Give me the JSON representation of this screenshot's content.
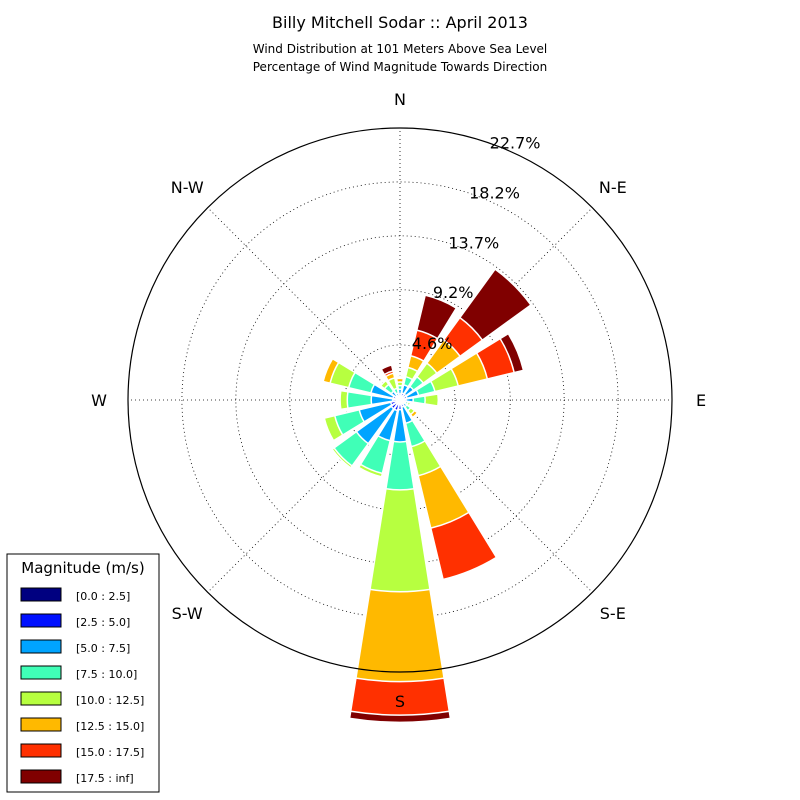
{
  "chart_data": {
    "type": "windrose",
    "title": "Billy Mitchell Sodar :: April 2013",
    "subtitle_lines": [
      "Wind Distribution at 101 Meters Above Sea Level",
      "Percentage of Wind Magnitude Towards Direction"
    ],
    "directions": [
      "N",
      "N-E",
      "E",
      "S-E",
      "S",
      "S-W",
      "W",
      "N-W"
    ],
    "radial_ticks": [
      {
        "value": 4.6,
        "label": "4.6%"
      },
      {
        "value": 9.2,
        "label": "9.2%"
      },
      {
        "value": 13.7,
        "label": "13.7%"
      },
      {
        "value": 18.2,
        "label": "18.2%"
      },
      {
        "value": 22.7,
        "label": "22.7%"
      }
    ],
    "r_max": 22.7,
    "grid": true,
    "legend": {
      "title": "Magnitude (m/s)",
      "placement": "bottom-left",
      "entries": [
        {
          "label": "[0.0 : 2.5]",
          "color": "#000080"
        },
        {
          "label": "[2.5 : 5.0]",
          "color": "#0010ff"
        },
        {
          "label": "[5.0 : 7.5]",
          "color": "#00a4ff"
        },
        {
          "label": "[7.5 : 10.0]",
          "color": "#40ffb7"
        },
        {
          "label": "[10.0 : 12.5]",
          "color": "#b7ff40"
        },
        {
          "label": "[12.5 : 15.0]",
          "color": "#ffb900"
        },
        {
          "label": "[15.0 : 17.5]",
          "color": "#ff3000"
        },
        {
          "label": "[17.5 : inf]",
          "color": "#800000"
        }
      ]
    },
    "sector_direction_degrees": [
      0,
      22.5,
      45,
      67.5,
      90,
      112.5,
      135,
      157.5,
      180,
      202.5,
      225,
      247.5,
      270,
      292.5,
      315,
      337.5
    ],
    "cumulative_percent_by_sector": [
      [
        0.2,
        0.5,
        0.9,
        1.2,
        1.5,
        1.8,
        1.9,
        2.0
      ],
      [
        0.2,
        0.6,
        1.3,
        2.0,
        2.8,
        3.8,
        6.0,
        9.0
      ],
      [
        0.2,
        0.6,
        1.4,
        2.4,
        3.8,
        6.2,
        8.5,
        13.5
      ],
      [
        0.2,
        0.6,
        1.6,
        3.0,
        5.0,
        7.5,
        9.8,
        10.6
      ],
      [
        0.2,
        0.5,
        1.1,
        2.1,
        3.2,
        3.3,
        3.4,
        3.4
      ],
      [
        0.2,
        0.3,
        0.5,
        0.7,
        0.9,
        1.0,
        1.0,
        1.0
      ],
      [
        0.2,
        0.4,
        0.7,
        1.1,
        1.5,
        1.8,
        1.9,
        1.9
      ],
      [
        0.2,
        0.6,
        2.0,
        4.0,
        6.5,
        11.0,
        15.4,
        15.4
      ],
      [
        0.2,
        0.8,
        3.5,
        7.5,
        16.0,
        23.5,
        26.3,
        26.9
      ],
      [
        0.2,
        0.9,
        3.5,
        6.3,
        6.6,
        6.7,
        6.7,
        6.7
      ],
      [
        0.2,
        0.9,
        4.5,
        6.8,
        7.0,
        7.0,
        7.0,
        7.0
      ],
      [
        0.2,
        0.8,
        3.5,
        5.6,
        6.5,
        6.5,
        6.5,
        6.5
      ],
      [
        0.2,
        0.6,
        2.4,
        4.4,
        5.0,
        5.0,
        5.0,
        5.0
      ],
      [
        0.2,
        0.6,
        2.5,
        4.4,
        6.0,
        6.6,
        6.6,
        6.6
      ],
      [
        0.2,
        0.4,
        0.9,
        1.6,
        2.0,
        2.0,
        2.0,
        2.0
      ],
      [
        0.2,
        0.3,
        0.6,
        1.0,
        1.9,
        2.3,
        2.5,
        3.0
      ]
    ]
  }
}
